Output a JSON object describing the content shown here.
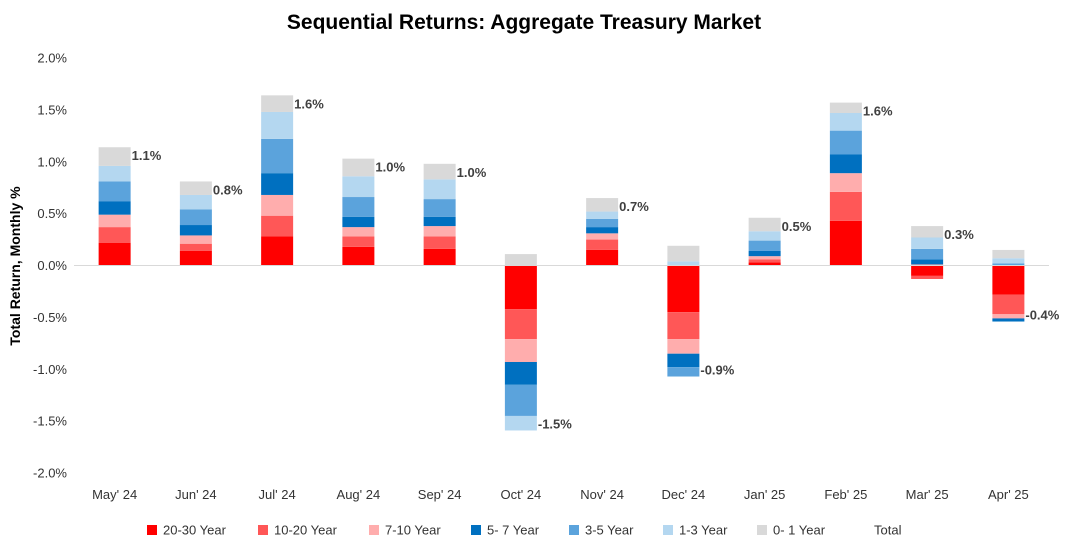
{
  "chart_data": {
    "type": "bar",
    "stacked": true,
    "title": "Sequential Returns: Aggregate Treasury Market",
    "xlabel": "",
    "ylabel": "Total Return, Monthly %",
    "ylim": [
      -2.0,
      2.0
    ],
    "yticks": [
      2.0,
      1.5,
      1.0,
      0.5,
      0.0,
      -0.5,
      -1.0,
      -1.5,
      -2.0
    ],
    "ytick_labels": [
      "2.0%",
      "1.5%",
      "1.0%",
      "0.5%",
      "0.0%",
      "-0.5%",
      "-1.0%",
      "-1.5%",
      "-2.0%"
    ],
    "grid": false,
    "legend_position": "bottom",
    "categories": [
      "May' 24",
      "Jun' 24",
      "Jul' 24",
      "Aug' 24",
      "Sep' 24",
      "Oct' 24",
      "Nov' 24",
      "Dec' 24",
      "Jan' 25",
      "Feb' 25",
      "Mar' 25",
      "Apr' 25"
    ],
    "series": [
      {
        "name": "20-30 Year",
        "color": "#ff0000",
        "values": [
          0.22,
          0.14,
          0.28,
          0.18,
          0.16,
          -0.42,
          0.15,
          -0.45,
          0.03,
          0.43,
          -0.1,
          -0.28
        ]
      },
      {
        "name": "10-20 Year",
        "color": "#ff5757",
        "values": [
          0.15,
          0.07,
          0.2,
          0.1,
          0.12,
          -0.29,
          0.1,
          -0.26,
          0.03,
          0.28,
          -0.03,
          -0.19
        ]
      },
      {
        "name": "7-10 Year",
        "color": "#ffadad",
        "values": [
          0.12,
          0.08,
          0.2,
          0.09,
          0.1,
          -0.22,
          0.06,
          -0.14,
          0.03,
          0.18,
          0.01,
          -0.04
        ]
      },
      {
        "name": "5- 7 Year",
        "color": "#0070c0",
        "values": [
          0.13,
          0.1,
          0.21,
          0.1,
          0.09,
          -0.22,
          0.06,
          -0.13,
          0.05,
          0.18,
          0.05,
          -0.03
        ]
      },
      {
        "name": "3-5 Year",
        "color": "#5ba3dc",
        "values": [
          0.19,
          0.15,
          0.33,
          0.19,
          0.17,
          -0.3,
          0.08,
          -0.09,
          0.1,
          0.23,
          0.1,
          0.02
        ]
      },
      {
        "name": "1-3 Year",
        "color": "#b4d7f0",
        "values": [
          0.15,
          0.14,
          0.26,
          0.2,
          0.19,
          -0.14,
          0.07,
          0.04,
          0.09,
          0.17,
          0.11,
          0.05
        ]
      },
      {
        "name": "0- 1 Year",
        "color": "#d9d9d9",
        "values": [
          0.18,
          0.13,
          0.16,
          0.17,
          0.15,
          0.11,
          0.13,
          0.15,
          0.13,
          0.1,
          0.11,
          0.08
        ]
      },
      {
        "name": "Total",
        "color": "none",
        "values": [
          1.1,
          0.8,
          1.6,
          1.0,
          1.0,
          -1.5,
          0.7,
          -0.9,
          0.5,
          1.6,
          0.3,
          -0.4
        ]
      }
    ],
    "total_labels": [
      "1.1%",
      "0.8%",
      "1.6%",
      "1.0%",
      "1.0%",
      "-1.5%",
      "0.7%",
      "-0.9%",
      "0.5%",
      "1.6%",
      "0.3%",
      "-0.4%"
    ]
  }
}
